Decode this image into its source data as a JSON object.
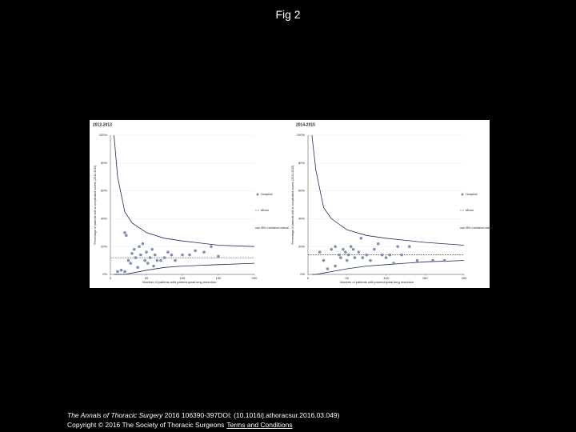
{
  "header": {
    "title": "Fig 2"
  },
  "chart_data": [
    {
      "type": "scatter",
      "title": "2012-2013",
      "xlabel": "Number of patients with parenchymal lung resection",
      "ylabel": "Percentage of patients with a complicated course (2012-2013)",
      "xlim": [
        0,
        200
      ],
      "ylim": [
        0,
        100
      ],
      "xticks": [
        0,
        50,
        100,
        150,
        200
      ],
      "yticks": [
        {
          "value": 0,
          "label": "0%"
        },
        {
          "value": 20,
          "label": "20%"
        },
        {
          "value": 40,
          "label": "40%"
        },
        {
          "value": 60,
          "label": "60%"
        },
        {
          "value": 80,
          "label": "80%"
        },
        {
          "value": 100,
          "label": "100%"
        }
      ],
      "grid": true,
      "series": [
        {
          "name": "Hospital",
          "color": "#8a98b8",
          "x": [
            20,
            22,
            25,
            28,
            30,
            33,
            35,
            38,
            40,
            42,
            45,
            48,
            50,
            52,
            55,
            58,
            60,
            62,
            65,
            70,
            75,
            80,
            85,
            90,
            100,
            110,
            118,
            130,
            140,
            150,
            10,
            15,
            20
          ],
          "values": [
            30,
            28,
            10,
            8,
            15,
            18,
            12,
            5,
            20,
            14,
            22,
            10,
            16,
            8,
            12,
            18,
            6,
            14,
            10,
            10,
            12,
            16,
            14,
            10,
            14,
            14,
            17,
            16,
            20,
            13,
            2,
            3,
            2
          ]
        }
      ],
      "mean": {
        "name": "Mean",
        "value": 12
      },
      "ci": {
        "name": "95% Confidence Interval",
        "color": "#1f2a5a",
        "x": [
          5,
          10,
          20,
          30,
          50,
          75,
          100,
          150,
          200
        ],
        "upper": [
          100,
          70,
          45,
          37,
          30,
          26,
          24,
          21,
          20
        ],
        "lower": [
          0,
          0,
          0,
          1,
          3,
          5,
          6,
          7,
          8
        ]
      }
    },
    {
      "type": "scatter",
      "title": "2014-2015",
      "xlabel": "Number of patients with parenchymal lung resection",
      "ylabel": "Percentage of patients with a complicated course (2014-2015)",
      "xlim": [
        0,
        200
      ],
      "ylim": [
        0,
        100
      ],
      "xticks": [
        0,
        50,
        100,
        150,
        200
      ],
      "yticks": [
        {
          "value": 0,
          "label": "0%"
        },
        {
          "value": 20,
          "label": "20%"
        },
        {
          "value": 40,
          "label": "40%"
        },
        {
          "value": 60,
          "label": "60%"
        },
        {
          "value": 80,
          "label": "80%"
        },
        {
          "value": 100,
          "label": "100%"
        }
      ],
      "grid": true,
      "series": [
        {
          "name": "Hospital",
          "color": "#8a98b8",
          "x": [
            15,
            20,
            30,
            35,
            40,
            42,
            45,
            48,
            50,
            52,
            55,
            58,
            60,
            65,
            68,
            70,
            75,
            80,
            85,
            90,
            95,
            100,
            105,
            110,
            115,
            120,
            130,
            140,
            160,
            175,
            25,
            35
          ],
          "values": [
            16,
            10,
            18,
            20,
            14,
            12,
            18,
            16,
            10,
            14,
            20,
            18,
            12,
            16,
            26,
            12,
            14,
            10,
            18,
            22,
            14,
            12,
            14,
            8,
            20,
            14,
            20,
            10,
            10,
            10,
            4,
            6
          ]
        }
      ],
      "mean": {
        "name": "Mean",
        "value": 14
      },
      "ci": {
        "name": "95% Confidence Interval",
        "color": "#1f2a5a",
        "x": [
          5,
          10,
          20,
          30,
          50,
          75,
          100,
          150,
          200
        ],
        "upper": [
          100,
          75,
          48,
          40,
          32,
          28,
          26,
          23,
          21
        ],
        "lower": [
          0,
          0,
          1,
          2,
          4,
          6,
          7,
          9,
          10
        ]
      }
    }
  ],
  "footer": {
    "journal": "The Annals of Thoracic Surgery",
    "citation": "2016 106390-397DOI: (10.1016/j.athoracsur.2016.03.049)",
    "copyright": "Copyright © 2016 The Society of Thoracic Surgeons",
    "link": "Terms and Conditions"
  }
}
